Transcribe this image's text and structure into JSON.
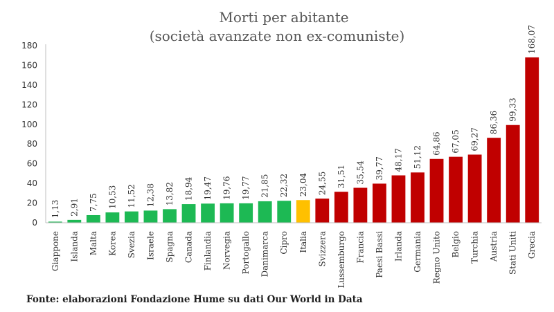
{
  "chart_data": {
    "type": "bar",
    "title": "Morti per abitante",
    "subtitle": "(società avanzate non ex-comuniste)",
    "xlabel": "",
    "ylabel": "",
    "ylim": [
      0,
      180
    ],
    "yticks": [
      "0",
      "20",
      "40",
      "60",
      "80",
      "100",
      "120",
      "140",
      "160",
      "180"
    ],
    "grid": false,
    "categories": [
      "Giappone",
      "Islanda",
      "Malta",
      "Korea",
      "Svezia",
      "Israele",
      "Spagna",
      "Canada",
      "Finlandia",
      "Norvegia",
      "Portogallo",
      "Danimarca",
      "Cipro",
      "Italia",
      "Svizzera",
      "Lussemburgo",
      "Francia",
      "Paesi Bassi",
      "Irlanda",
      "Germania",
      "Regno Unito",
      "Belgio",
      "Turchia",
      "Austria",
      "Stati Uniti",
      "Grecia"
    ],
    "values": [
      1.13,
      2.91,
      7.75,
      10.53,
      11.52,
      12.38,
      13.82,
      18.94,
      19.47,
      19.76,
      19.77,
      21.85,
      22.32,
      23.04,
      24.55,
      31.51,
      35.54,
      39.77,
      48.17,
      51.12,
      64.86,
      67.05,
      69.27,
      86.36,
      99.33,
      168.07
    ],
    "value_labels": [
      "1,13",
      "2,91",
      "7,75",
      "10,53",
      "11,52",
      "12,38",
      "13,82",
      "18,94",
      "19,47",
      "19,76",
      "19,77",
      "21,85",
      "22,32",
      "23,04",
      "24,55",
      "31,51",
      "35,54",
      "39,77",
      "48,17",
      "51,12",
      "64,86",
      "67,05",
      "69,27",
      "86,36",
      "99,33",
      "168,07"
    ],
    "bar_colors": [
      "#1db954",
      "#1db954",
      "#1db954",
      "#1db954",
      "#1db954",
      "#1db954",
      "#1db954",
      "#1db954",
      "#1db954",
      "#1db954",
      "#1db954",
      "#1db954",
      "#1db954",
      "#ffc000",
      "#c00000",
      "#c00000",
      "#c00000",
      "#c00000",
      "#c00000",
      "#c00000",
      "#c00000",
      "#c00000",
      "#c00000",
      "#c00000",
      "#c00000",
      "#c00000"
    ]
  },
  "source": "Fonte: elaborazioni Fondazione Hume su dati Our World in Data"
}
